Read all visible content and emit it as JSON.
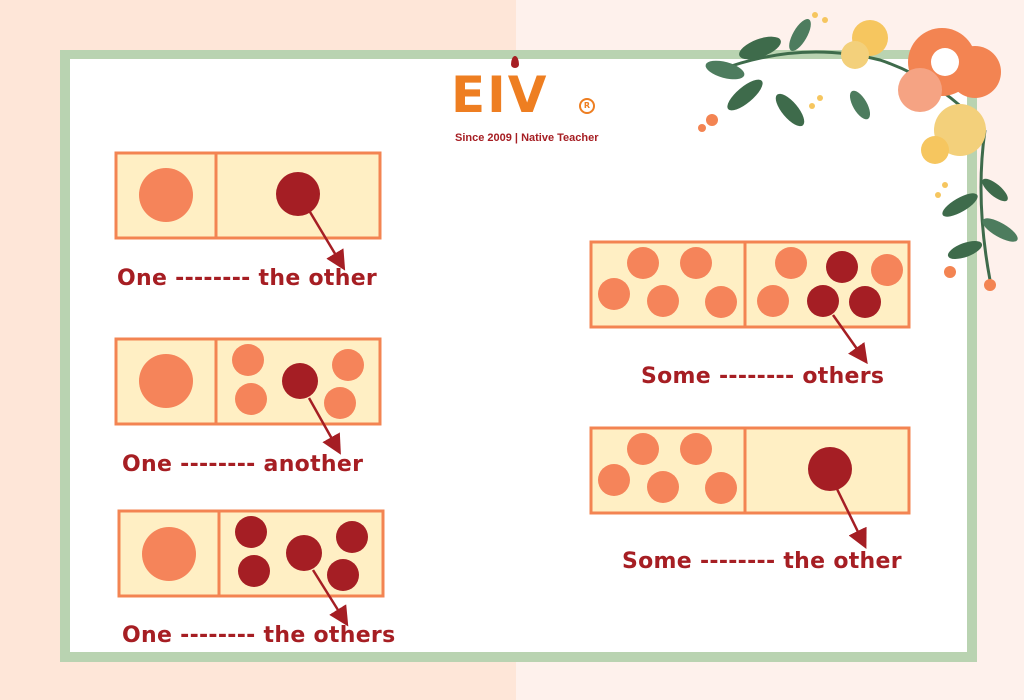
{
  "logo": {
    "brand": "EIV",
    "registered": "R",
    "tagline": "Since 2009 | Native Teacher"
  },
  "captions": {
    "one_the_other": "One -------- the other",
    "one_another": "One -------- another",
    "one_the_others": "One -------- the others",
    "some_others": "Some -------- others",
    "some_the_other": "Some -------- the other"
  },
  "colors": {
    "page_left": "#FEE6D8",
    "page_right": "#FEF1EC",
    "frame": "#B9D3B1",
    "box_fill": "#FFEFC4",
    "box_border": "#F38452",
    "light_dot": "#F5845A",
    "dark_dot": "#A51E24",
    "text": "#A61E23",
    "logo": "#EE7E21"
  }
}
